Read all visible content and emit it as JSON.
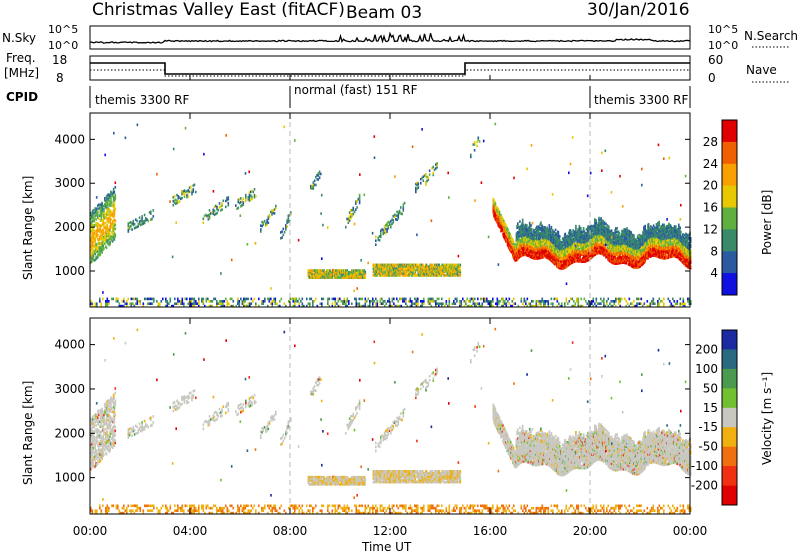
{
  "header": {
    "station": "Christmas Valley East (fitACF)",
    "beam": "Beam 03",
    "date": "30/Jan/2016"
  },
  "top_panels": {
    "nsky_label": "N.Sky",
    "nsearch_label": "N.Search",
    "nsky_ticks": [
      "10^5",
      "10^0"
    ],
    "nsearch_ticks": [
      "10^5",
      "10^0"
    ],
    "freq_label": "Freq.",
    "freq_unit": "[MHz]",
    "freq_ticks": [
      "18",
      "8"
    ],
    "nave_label": "Nave",
    "nave_ticks": [
      "60",
      "0"
    ],
    "cpid_label": "CPID",
    "cpid_segments": [
      {
        "label": "themis 3300 RF",
        "start_h": 0,
        "end_h": 8
      },
      {
        "label": "normal (fast) 151 RF",
        "start_h": 8,
        "end_h": 20
      },
      {
        "label": "themis 3300 RF",
        "start_h": 20,
        "end_h": 24
      }
    ]
  },
  "chart_data": [
    {
      "type": "heatmap",
      "name": "power-panel",
      "ylabel": "Slant Range [km]",
      "y_ticks": [
        1000,
        2000,
        3000,
        4000
      ],
      "ylim": [
        180,
        4600
      ],
      "colorbar_label": "Power [dB]",
      "colorbar_ticks": [
        "28",
        "24",
        "20",
        "16",
        "12",
        "8",
        "4"
      ],
      "colorbar_colors": [
        "#e00000",
        "#f06000",
        "#f8a000",
        "#e8c800",
        "#60b040",
        "#3a8a6a",
        "#2a5aa0",
        "#1010e0"
      ],
      "regions_summary": [
        {
          "t_start": 0.0,
          "t_end": 1.0,
          "range_km": [
            1400,
            2900
          ],
          "power_db": 20
        },
        {
          "t_start": 8.7,
          "t_end": 11.0,
          "range_km": [
            800,
            1050
          ],
          "power_db": 16
        },
        {
          "t_start": 11.2,
          "t_end": 14.8,
          "range_km": [
            900,
            1100
          ],
          "power_db": 16
        },
        {
          "t_start": 16.1,
          "t_end": 24.0,
          "range_km": [
            1150,
            2600
          ],
          "power_db": 24
        }
      ]
    },
    {
      "type": "heatmap",
      "name": "velocity-panel",
      "ylabel": "Slant Range [km]",
      "y_ticks": [
        1000,
        2000,
        3000,
        4000
      ],
      "ylim": [
        180,
        4600
      ],
      "colorbar_label": "Velocity [m s⁻¹]",
      "colorbar_ticks": [
        "200",
        "100",
        "50",
        "15",
        "-15",
        "-50",
        "-100",
        "-200"
      ],
      "colorbar_colors": [
        "#1a2aa0",
        "#2a6a80",
        "#4a9a50",
        "#70c030",
        "#c8c8c0",
        "#f0b010",
        "#f07010",
        "#f03010",
        "#e00000"
      ]
    }
  ],
  "x_axis": {
    "label": "Time UT",
    "ticks": [
      "00:00",
      "04:00",
      "08:00",
      "12:00",
      "16:00",
      "20:00",
      "00:00"
    ]
  }
}
